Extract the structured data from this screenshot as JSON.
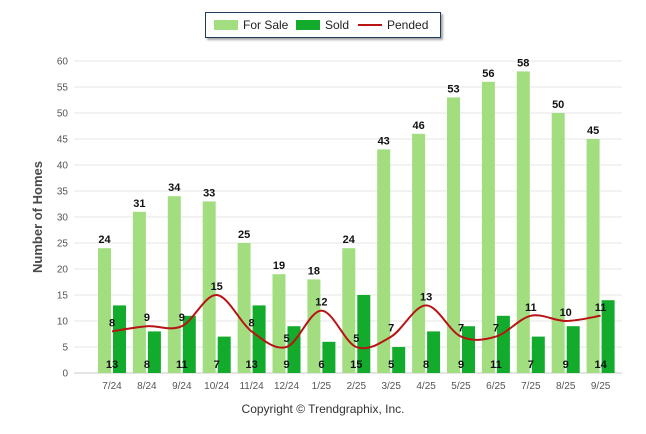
{
  "legend": {
    "for_sale": "For Sale",
    "sold": "Sold",
    "pended": "Pended"
  },
  "colors": {
    "for_sale": "#a2de80",
    "sold": "#13ab2c",
    "pended": "#b81414"
  },
  "copyright": "Copyright © Trendgraphix, Inc.",
  "chart_data": {
    "type": "bar",
    "title": "",
    "xlabel": "",
    "ylabel": "Number of Homes",
    "ylim": [
      0,
      60
    ],
    "yticks": [
      0,
      5,
      10,
      15,
      20,
      25,
      30,
      35,
      40,
      45,
      50,
      55,
      60
    ],
    "grid": true,
    "legend_position": "top-center",
    "categories": [
      "7/24",
      "8/24",
      "9/24",
      "10/24",
      "11/24",
      "12/24",
      "1/25",
      "2/25",
      "3/25",
      "4/25",
      "5/25",
      "6/25",
      "7/25",
      "8/25",
      "9/25"
    ],
    "series": [
      {
        "name": "For Sale",
        "type": "bar",
        "values": [
          24,
          31,
          34,
          33,
          25,
          19,
          18,
          24,
          43,
          46,
          53,
          56,
          58,
          50,
          45
        ]
      },
      {
        "name": "Sold",
        "type": "bar",
        "values": [
          13,
          8,
          11,
          7,
          13,
          9,
          6,
          15,
          5,
          8,
          9,
          11,
          7,
          9,
          14
        ]
      },
      {
        "name": "Pended",
        "type": "line",
        "values": [
          8,
          9,
          9,
          15,
          8,
          5,
          12,
          5,
          7,
          13,
          7,
          7,
          11,
          10,
          11
        ]
      }
    ]
  }
}
